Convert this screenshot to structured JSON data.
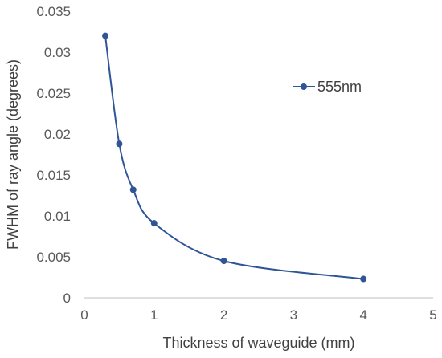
{
  "chart_data": {
    "type": "line",
    "title": "",
    "xlabel": "Thickness of waveguide (mm)",
    "ylabel": "FWHM of ray angle (degrees)",
    "xlim": [
      0,
      5
    ],
    "ylim": [
      0,
      0.035
    ],
    "xticks": [
      "0",
      "1",
      "2",
      "3",
      "4",
      "5"
    ],
    "yticks": [
      "0",
      "0.005",
      "0.01",
      "0.015",
      "0.02",
      "0.025",
      "0.03",
      "0.035"
    ],
    "grid": false,
    "smooth": true,
    "legend_position": "right",
    "series": [
      {
        "name": "555nm",
        "color": "#2F5597",
        "x": [
          0.3,
          0.5,
          0.7,
          1,
          2,
          4
        ],
        "y": [
          0.032,
          0.0188,
          0.0132,
          0.0091,
          0.0045,
          0.0023
        ]
      }
    ]
  }
}
